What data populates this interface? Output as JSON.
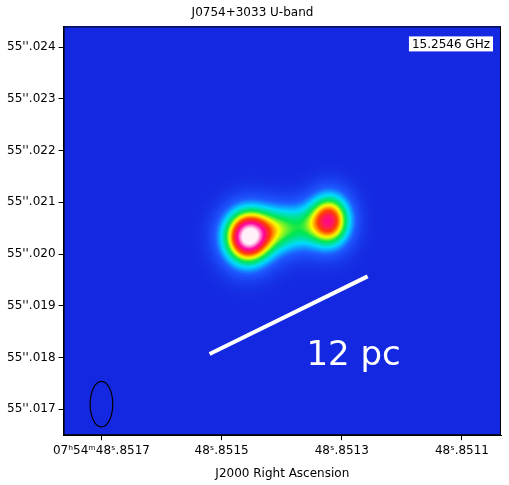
{
  "chart_data": {
    "type": "image",
    "title": "J0754+3033 U-band",
    "x_label": "J2000 Right Ascension",
    "xlim": [
      0.851763,
      0.851035
    ],
    "xticks": [
      {
        "value": 0.8517,
        "label": "07ʰ54ᵐ48ˢ.8517"
      },
      {
        "value": 0.8515,
        "label": "48ˢ.8515"
      },
      {
        "value": 0.8513,
        "label": "48ˢ.8513"
      },
      {
        "value": 0.8511,
        "label": "48ˢ.8511"
      }
    ],
    "ylim": [
      55.0165,
      55.0244
    ],
    "yticks": [
      {
        "value": 55.017,
        "label": "55''.017"
      },
      {
        "value": 55.018,
        "label": "55''.018"
      },
      {
        "value": 55.019,
        "label": "55''.019"
      },
      {
        "value": 55.02,
        "label": "55''.020"
      },
      {
        "value": 55.021,
        "label": "55''.021"
      },
      {
        "value": 55.022,
        "label": "55''.022"
      },
      {
        "value": 55.023,
        "label": "55''.023"
      },
      {
        "value": 55.024,
        "label": "55''.024"
      }
    ],
    "grid": false,
    "components": [
      {
        "ra": 0.851457,
        "dec": 55.02033,
        "peak": 1,
        "sigma_ra": 3e-05,
        "sigma_dec": 0.0004
      },
      {
        "ra": 0.85139,
        "dec": 55.0205,
        "peak": 0.45,
        "sigma_ra": 3.5e-05,
        "sigma_dec": 0.00035
      },
      {
        "ra": 0.85132,
        "dec": 55.02065,
        "peak": 0.8,
        "sigma_ra": 2.6e-05,
        "sigma_dec": 0.00038
      }
    ],
    "beam": {
      "ra": 0.8517,
      "dec": 55.0171,
      "ra_halfwidth": 1.88e-05,
      "dec_halfheight": 0.00044
    },
    "annotations": [
      {
        "text": "15.2546 GHz"
      },
      {
        "text": "12 pc",
        "line": [
          [
            0.85152,
            55.01807
          ],
          [
            0.851257,
            55.01957
          ]
        ]
      }
    ]
  }
}
